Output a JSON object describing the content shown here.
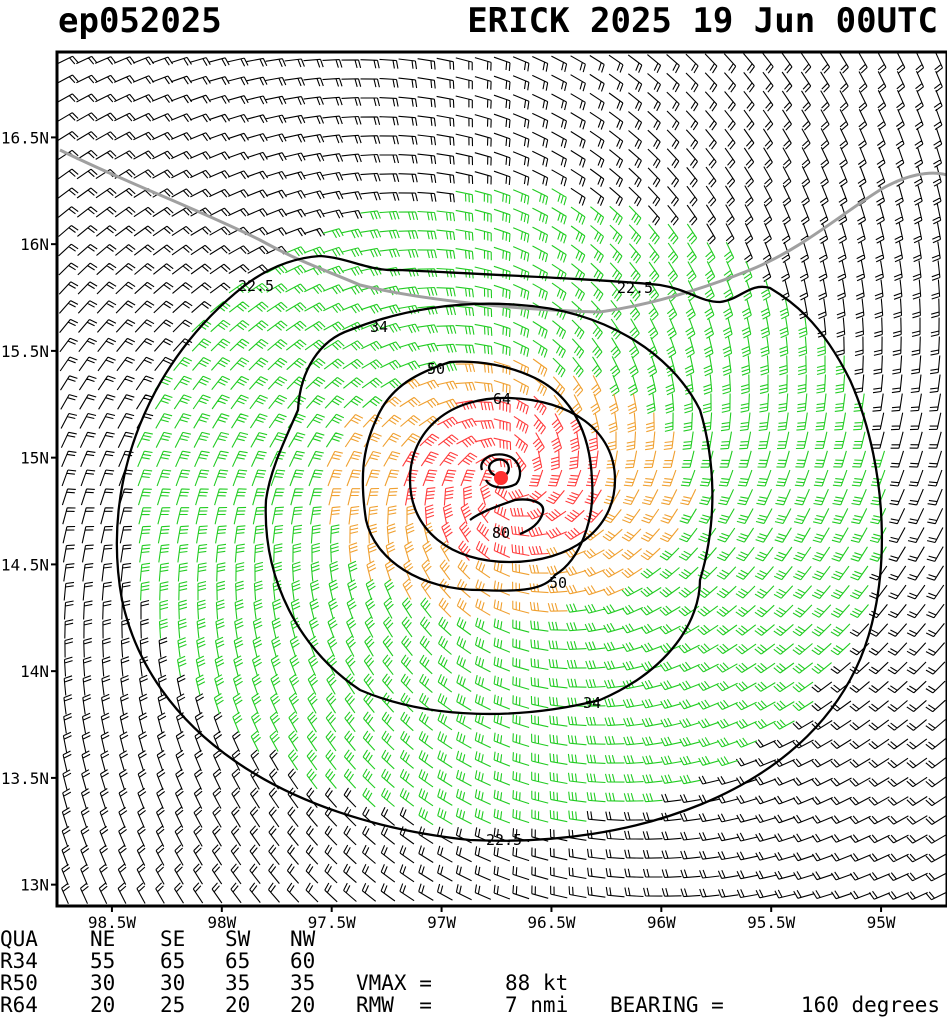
{
  "header": {
    "storm_id": "ep052025",
    "storm_time": "ERICK 2025 19 Jun 00UTC"
  },
  "map": {
    "lon_range": [
      -98.75,
      -94.7
    ],
    "lat_range": [
      12.9,
      16.9
    ],
    "center": {
      "lon": -96.7,
      "lat": 14.9
    },
    "lat_ticks": [
      {
        "value": 16.5,
        "label": "16.5N"
      },
      {
        "value": 16.0,
        "label": "16N"
      },
      {
        "value": 15.5,
        "label": "15.5N"
      },
      {
        "value": 15.0,
        "label": "15N"
      },
      {
        "value": 14.5,
        "label": "14.5N"
      },
      {
        "value": 14.0,
        "label": "14N"
      },
      {
        "value": 13.5,
        "label": "13.5N"
      },
      {
        "value": 13.0,
        "label": "13N"
      }
    ],
    "lon_ticks": [
      {
        "value": -98.5,
        "label": "98.5W"
      },
      {
        "value": -98.0,
        "label": "98W"
      },
      {
        "value": -97.5,
        "label": "97.5W"
      },
      {
        "value": -97.0,
        "label": "97W"
      },
      {
        "value": -96.5,
        "label": "96.5W"
      },
      {
        "value": -96.0,
        "label": "96W"
      },
      {
        "value": -95.5,
        "label": "95.5W"
      },
      {
        "value": -95.0,
        "label": "95W"
      }
    ],
    "contours": [
      {
        "label": "22.5"
      },
      {
        "label": "22.5"
      },
      {
        "label": "34"
      },
      {
        "label": "34"
      },
      {
        "label": "50"
      },
      {
        "label": "50"
      },
      {
        "label": "64"
      },
      {
        "label": "80"
      },
      {
        "label": "22.5"
      }
    ],
    "wind_colors": {
      "below_34": "#000000",
      "r34": "#22cc22",
      "r50": "#f0a030",
      "r64": "#ff3c3c",
      "coast": "#a0a0a0",
      "center": "#ff3030"
    }
  },
  "table": {
    "header": [
      "QUA",
      "NE",
      "SE",
      "SW",
      "NW"
    ],
    "rows": [
      [
        "R34",
        "55",
        "65",
        "65",
        "60"
      ],
      [
        "R50",
        "30",
        "30",
        "35",
        "35"
      ],
      [
        "R64",
        "20",
        "25",
        "20",
        "20"
      ]
    ]
  },
  "stats": {
    "vmax_label": "VMAX =",
    "vmax_value": "88 kt",
    "rmw_label": "RMW  =",
    "rmw_value": "7 nmi",
    "bearing_label": "BEARING =",
    "bearing_value": "160 degrees"
  }
}
